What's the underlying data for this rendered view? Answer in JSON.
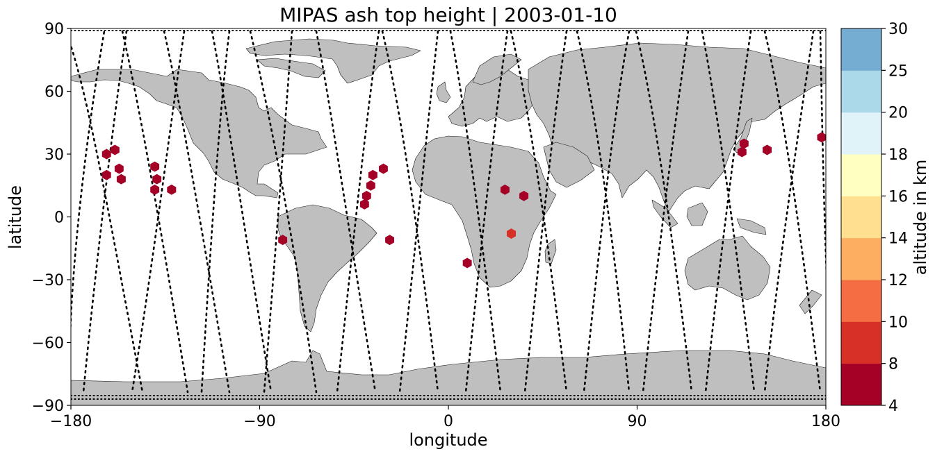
{
  "chart_data": {
    "type": "scatter",
    "title": "MIPAS ash top height | 2003-01-10",
    "xlabel": "longitude",
    "ylabel": "latitude",
    "xlim": [
      -180,
      180
    ],
    "ylim": [
      -90,
      90
    ],
    "xticks": [
      -180,
      -90,
      0,
      90,
      180
    ],
    "yticks": [
      -90,
      -60,
      -30,
      0,
      30,
      60,
      90
    ],
    "xtick_labels": [
      "−180",
      "−90",
      "0",
      "90",
      "180"
    ],
    "ytick_labels": [
      "−90",
      "−60",
      "−30",
      "0",
      "30",
      "60",
      "90"
    ],
    "grid": false,
    "land_color": "#bfbfbf",
    "colorbar": {
      "label": "altitude in km",
      "boundaries": [
        4,
        8,
        10,
        12,
        14,
        16,
        18,
        20,
        25,
        30
      ],
      "tick_labels": [
        "4",
        "8",
        "10",
        "12",
        "14",
        "16",
        "18",
        "20",
        "25",
        "30"
      ],
      "colors": [
        "#a50026",
        "#d73027",
        "#f46d43",
        "#fdae61",
        "#fee090",
        "#ffffbf",
        "#e0f3f8",
        "#abd9e9",
        "#74add1",
        "#4575b4",
        "#313695"
      ]
    },
    "ash_detections": [
      {
        "lon": -163,
        "lat": 30,
        "alt": 6
      },
      {
        "lon": -159,
        "lat": 32,
        "alt": 6
      },
      {
        "lon": -157,
        "lat": 23,
        "alt": 6
      },
      {
        "lon": -163,
        "lat": 20,
        "alt": 6
      },
      {
        "lon": -156,
        "lat": 18,
        "alt": 6
      },
      {
        "lon": -140,
        "lat": 24,
        "alt": 6
      },
      {
        "lon": -139,
        "lat": 18,
        "alt": 6
      },
      {
        "lon": -140,
        "lat": 13,
        "alt": 6
      },
      {
        "lon": -132,
        "lat": 13,
        "alt": 6
      },
      {
        "lon": -79,
        "lat": -11,
        "alt": 6
      },
      {
        "lon": -36,
        "lat": 20,
        "alt": 6
      },
      {
        "lon": -31,
        "lat": 23,
        "alt": 6
      },
      {
        "lon": -37,
        "lat": 15,
        "alt": 6
      },
      {
        "lon": -39,
        "lat": 10,
        "alt": 6
      },
      {
        "lon": -40,
        "lat": 6,
        "alt": 6
      },
      {
        "lon": -28,
        "lat": -11,
        "alt": 6
      },
      {
        "lon": 9,
        "lat": -22,
        "alt": 6
      },
      {
        "lon": 27,
        "lat": 13,
        "alt": 6
      },
      {
        "lon": 36,
        "lat": 10,
        "alt": 6
      },
      {
        "lon": 30,
        "lat": -8,
        "alt": 9
      },
      {
        "lon": 141,
        "lat": 35,
        "alt": 6
      },
      {
        "lon": 140,
        "lat": 31,
        "alt": 6
      },
      {
        "lon": 152,
        "lat": 32,
        "alt": 6
      },
      {
        "lon": 178,
        "lat": 38,
        "alt": 6
      }
    ]
  }
}
